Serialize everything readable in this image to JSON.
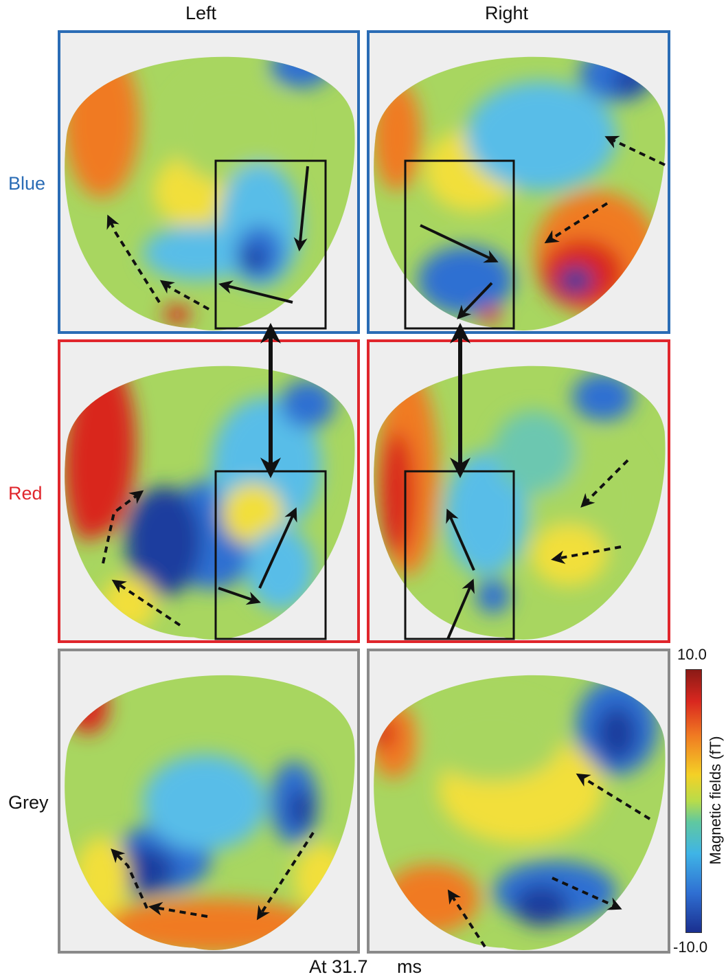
{
  "columns": {
    "left": "Left",
    "right": "Right"
  },
  "rows": [
    {
      "label": "Blue",
      "color": "#2a6cb5"
    },
    {
      "label": "Red",
      "color": "#e0262c"
    },
    {
      "label": "Grey",
      "color": "#111111"
    }
  ],
  "colorbar": {
    "max": "10.0",
    "min": "-10.0",
    "label": "Magnetic fields (fT)"
  },
  "time": {
    "prefix": "At 31.7",
    "unit": "ms"
  },
  "palette": {
    "red": "#d9271f",
    "orange": "#f07a22",
    "yellow": "#f2df3a",
    "green": "#a8d660",
    "teal": "#6cc7b0",
    "cyan": "#59bde8",
    "blue": "#2f6fd2",
    "darkblue": "#1c3d9e"
  }
}
